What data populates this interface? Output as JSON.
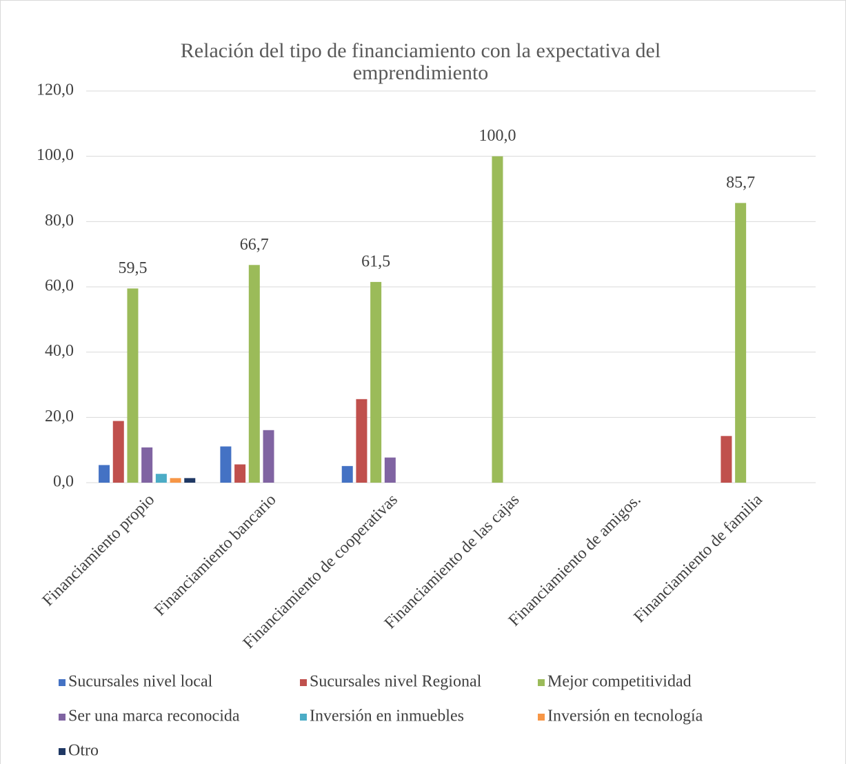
{
  "chart_data": {
    "type": "bar",
    "title": "Relación del tipo de financiamiento con la expectativa del emprendimiento",
    "categories": [
      "Financiamiento propio",
      "Financiamiento bancario",
      "Financiamiento de cooperativas",
      "Financiamiento de las cajas",
      "Financiamiento de amigos.",
      "Financiamiento de familia"
    ],
    "series": [
      {
        "name": "Sucursales nivel local",
        "color": "#4472c4",
        "values": [
          5.4,
          11.1,
          5.1,
          0,
          0,
          0
        ]
      },
      {
        "name": "Sucursales nivel Regional",
        "color": "#c0504d",
        "values": [
          18.9,
          5.6,
          25.6,
          0,
          0,
          14.3
        ]
      },
      {
        "name": "Mejor competitividad",
        "color": "#9bbb59",
        "values": [
          59.5,
          66.7,
          61.5,
          100.0,
          0,
          85.7
        ],
        "value_labels": [
          "59,5",
          "66,7",
          "61,5",
          "100,0",
          null,
          "85,7"
        ]
      },
      {
        "name": "Ser una marca reconocida",
        "color": "#8064a2",
        "values": [
          10.8,
          16.1,
          7.7,
          0,
          0,
          0
        ]
      },
      {
        "name": "Inversión en inmuebles",
        "color": "#4bacc6",
        "values": [
          2.7,
          0,
          0,
          0,
          0,
          0
        ]
      },
      {
        "name": "Inversión en tecnología",
        "color": "#f79646",
        "values": [
          1.4,
          0,
          0,
          0,
          0,
          0
        ]
      },
      {
        "name": "Otro",
        "color": "#1f3864",
        "values": [
          1.4,
          0,
          0,
          0,
          0,
          0
        ]
      }
    ],
    "ylim": [
      0,
      120
    ],
    "yticks": [
      {
        "value": 0,
        "label": "0,0"
      },
      {
        "value": 20,
        "label": "20,0"
      },
      {
        "value": 40,
        "label": "40,0"
      },
      {
        "value": 60,
        "label": "60,0"
      },
      {
        "value": 80,
        "label": "80,0"
      },
      {
        "value": 100,
        "label": "100,0"
      },
      {
        "value": 120,
        "label": "120,0"
      }
    ],
    "grid": true,
    "legend": "bottom"
  }
}
